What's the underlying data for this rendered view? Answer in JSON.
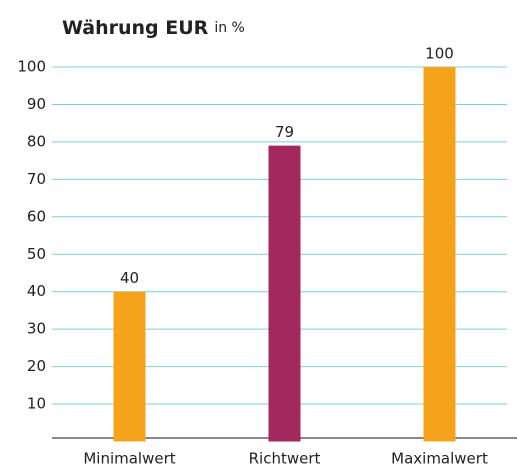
{
  "chart_data": {
    "type": "bar",
    "title": "Währung EUR",
    "unit": "in %",
    "categories": [
      "Minimalwert",
      "Richtwert",
      "Maximalwert"
    ],
    "values": [
      40,
      79,
      100
    ],
    "colors": [
      "#f5a31b",
      "#a3285e",
      "#f5a31b"
    ],
    "ylim": [
      0,
      100
    ],
    "yticks": [
      10,
      20,
      30,
      40,
      50,
      60,
      70,
      80,
      90,
      100
    ],
    "grid": true
  }
}
